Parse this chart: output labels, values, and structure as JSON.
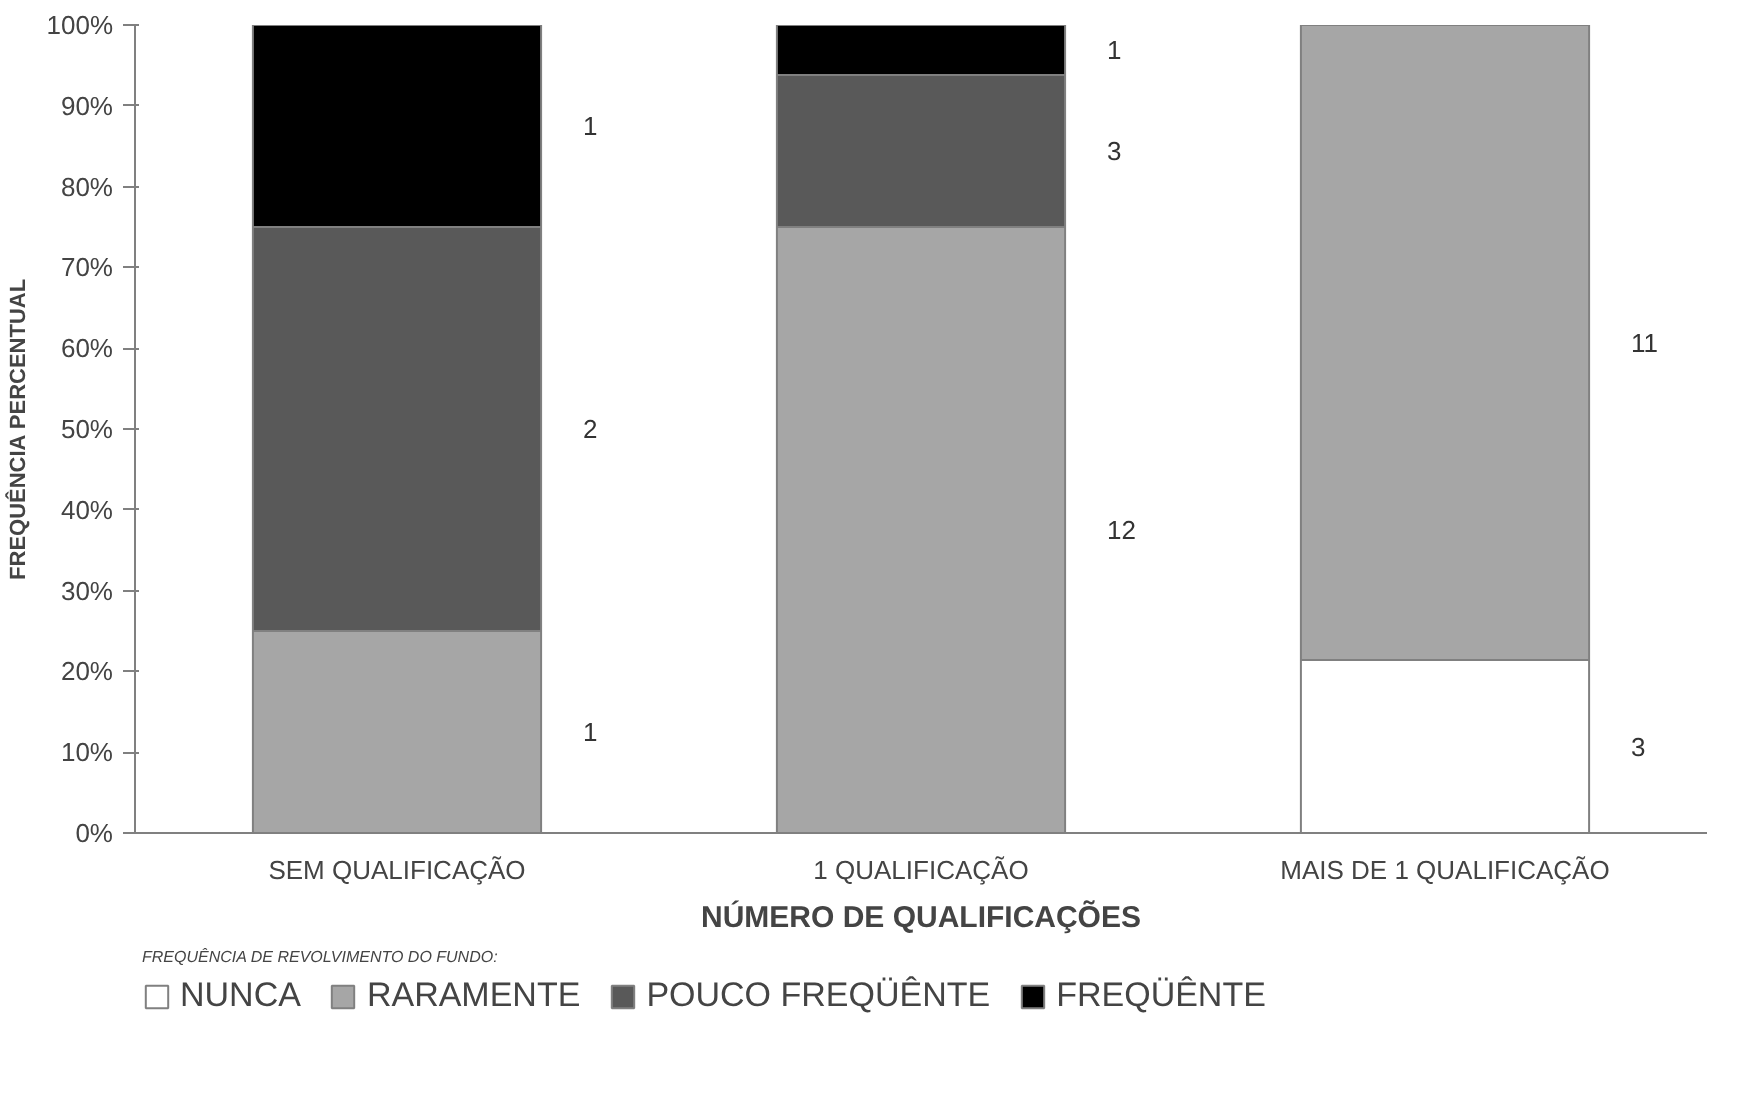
{
  "chart_data": {
    "type": "bar",
    "stacked": true,
    "xlabel": "NÚMERO DE QUALIFICAÇÕES",
    "ylabel": "FREQUÊNCIA PERCENTUAL",
    "legend_title": "FREQUÊNCIA DE REVOLVIMENTO DO FUNDO:",
    "legend": "bottom",
    "grid": false,
    "categories": [
      "SEM QUALIFICAÇÃO",
      "1 QUALIFICAÇÃO",
      "MAIS DE 1 QUALIFICAÇÃO"
    ],
    "ylim": [
      0,
      100
    ],
    "yticks": [
      {
        "value": 0,
        "label": "0%"
      },
      {
        "value": 10,
        "label": "10%"
      },
      {
        "value": 20,
        "label": "20%"
      },
      {
        "value": 30,
        "label": "30%"
      },
      {
        "value": 40,
        "label": "40%"
      },
      {
        "value": 50,
        "label": "50%"
      },
      {
        "value": 60,
        "label": "60%"
      },
      {
        "value": 70,
        "label": "70%"
      },
      {
        "value": 80,
        "label": "80%"
      },
      {
        "value": 90,
        "label": "90%"
      },
      {
        "value": 100,
        "label": "100%"
      }
    ],
    "series": [
      {
        "name": "NUNCA",
        "color": "#ffffff",
        "values": [
          null,
          null,
          21.4
        ]
      },
      {
        "name": "RARAMENTE",
        "color": "#a6a6a6",
        "values": [
          25,
          75,
          78.6
        ]
      },
      {
        "name": "POUCO FREQÜÊNTE",
        "color": "#595959",
        "values": [
          50,
          18.8,
          null
        ]
      },
      {
        "name": "FREQÜÊNTE",
        "color": "#000000",
        "values": [
          25,
          6.2,
          null
        ]
      }
    ],
    "annotations": [
      "1",
      "2",
      "1",
      "12",
      "3",
      "1",
      "3",
      "11"
    ]
  }
}
